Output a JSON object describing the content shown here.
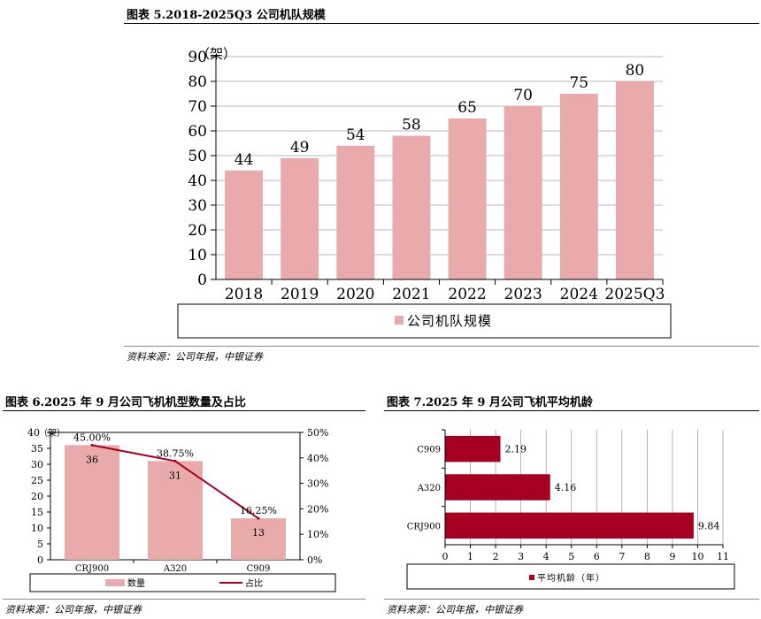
{
  "colors": {
    "bar": "#e8aaaa",
    "dark": "#a50021",
    "axis": "#000000",
    "grid": "#a0a0a0"
  },
  "fig1": {
    "title": "图表 5.2018-2025Q3 公司机队规模",
    "source": "资料来源：公司年报，中银证券",
    "chart_data": {
      "type": "bar",
      "categories": [
        "2018",
        "2019",
        "2020",
        "2021",
        "2022",
        "2023",
        "2024",
        "2025Q3"
      ],
      "series": [
        {
          "name": "公司机队规模",
          "values": [
            44,
            49,
            54,
            58,
            65,
            70,
            75,
            80
          ]
        }
      ],
      "ylabel": "（架）",
      "ylim": [
        0,
        90
      ],
      "yticks": [
        0,
        10,
        20,
        30,
        40,
        50,
        60,
        70,
        80,
        90
      ],
      "grid": true,
      "legend": "bottom"
    }
  },
  "fig2": {
    "title": "图表 6.2025 年 9 月公司飞机机型数量及占比",
    "source": "资料来源：公司年报，中银证券",
    "chart_data": {
      "type": "bar",
      "categories": [
        "CRJ900",
        "A320",
        "C909"
      ],
      "series": [
        {
          "name": "数量",
          "type": "bar",
          "axis": "left",
          "values": [
            36,
            31,
            13
          ]
        },
        {
          "name": "占比",
          "type": "line",
          "axis": "right",
          "values": [
            45.0,
            38.75,
            16.25
          ]
        }
      ],
      "value_labels": [
        "36",
        "31",
        "13"
      ],
      "pct_labels": [
        "45.00%",
        "38.75%",
        "16.25%"
      ],
      "ylabel": "（架）",
      "ylim": [
        0,
        40
      ],
      "yticks": [
        0,
        5,
        10,
        15,
        20,
        25,
        30,
        35,
        40
      ],
      "y2lim": [
        0,
        50
      ],
      "y2ticks": [
        "0%",
        "10%",
        "20%",
        "30%",
        "40%",
        "50%"
      ],
      "legend": "bottom"
    }
  },
  "fig3": {
    "title": "图表 7.2025 年 9 月公司飞机平均机龄",
    "source": "资料来源：公司年报，中银证券",
    "chart_data": {
      "type": "bar",
      "orientation": "horizontal",
      "categories": [
        "C909",
        "A320",
        "CRJ900"
      ],
      "series": [
        {
          "name": "平均机龄（年）",
          "values": [
            2.19,
            4.16,
            9.84
          ]
        }
      ],
      "value_labels": [
        "2.19",
        "4.16",
        "9.84"
      ],
      "xlim": [
        0,
        11
      ],
      "xticks": [
        0,
        1,
        2,
        3,
        4,
        5,
        6,
        7,
        8,
        9,
        10,
        11
      ],
      "grid": true,
      "legend": "bottom"
    }
  }
}
